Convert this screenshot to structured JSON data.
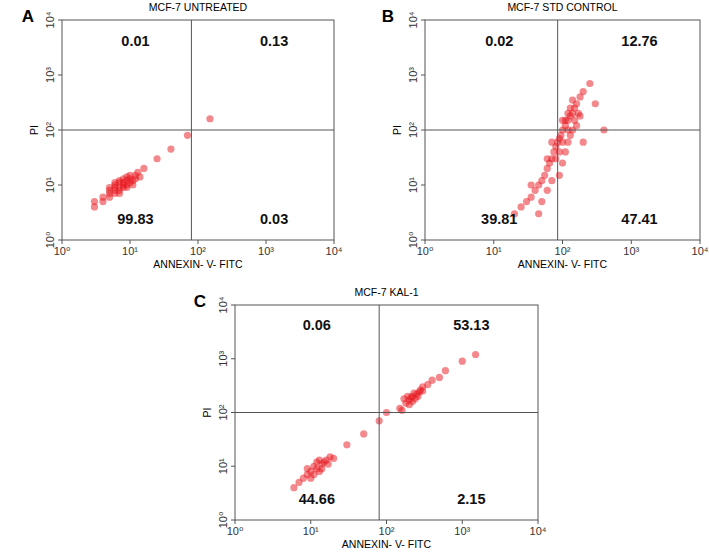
{
  "chart_data": [
    {
      "type": "scatter",
      "panel": "A",
      "title": "MCF-7 UNTREATED",
      "x_label": "ANNEXIN- V- FITC",
      "y_label": "PI",
      "log": true,
      "color": "#e8141b",
      "marker": "circle",
      "xlim": [
        1,
        10000
      ],
      "ylim": [
        1,
        10000
      ],
      "xticks": [
        {
          "value": 1,
          "label": "10⁰"
        },
        {
          "value": 10,
          "label": "10¹"
        },
        {
          "value": 100,
          "label": "10²"
        },
        {
          "value": 1000,
          "label": "10³"
        },
        {
          "value": 10000,
          "label": "10⁴"
        }
      ],
      "yticks": [
        {
          "value": 1,
          "label": "10⁰"
        },
        {
          "value": 10,
          "label": "10¹"
        },
        {
          "value": 100,
          "label": "10²"
        },
        {
          "value": 1000,
          "label": "10³"
        },
        {
          "value": 10000,
          "label": "10⁴"
        }
      ],
      "quadrant_x": 80,
      "quadrant_y": 100,
      "quadrants": {
        "upper_left": 0.01,
        "upper_right": 0.13,
        "lower_left": 99.83,
        "lower_right": 0.03
      },
      "x": [
        4,
        5,
        6,
        7,
        8,
        9,
        10,
        12,
        6,
        8,
        5,
        7,
        9,
        11,
        6,
        10,
        4,
        13,
        3,
        7,
        8,
        6,
        9,
        5,
        16,
        25,
        40,
        70,
        150,
        11,
        7,
        5,
        12,
        8,
        6,
        10,
        3,
        14,
        9,
        7
      ],
      "y": [
        6,
        7,
        8,
        9,
        11,
        12,
        13,
        15,
        10,
        9,
        9,
        12,
        10,
        12,
        7,
        11,
        5,
        17,
        5,
        8,
        13,
        11,
        14,
        6,
        20,
        30,
        45,
        80,
        160,
        10,
        7,
        8,
        13,
        10,
        9,
        15,
        4,
        14,
        9,
        11
      ]
    },
    {
      "type": "scatter",
      "panel": "B",
      "title": "MCF-7 STD CONTROL",
      "x_label": "ANNEXIN- V- FITC",
      "y_label": "PI",
      "log": true,
      "color": "#e8141b",
      "marker": "circle",
      "xlim": [
        1,
        10000
      ],
      "ylim": [
        1,
        10000
      ],
      "xticks": [
        {
          "value": 1,
          "label": "10⁰"
        },
        {
          "value": 10,
          "label": "10¹"
        },
        {
          "value": 100,
          "label": "10²"
        },
        {
          "value": 1000,
          "label": "10³"
        },
        {
          "value": 10000,
          "label": "10⁴"
        }
      ],
      "yticks": [
        {
          "value": 1,
          "label": "10⁰"
        },
        {
          "value": 10,
          "label": "10¹"
        },
        {
          "value": 100,
          "label": "10²"
        },
        {
          "value": 1000,
          "label": "10³"
        },
        {
          "value": 10000,
          "label": "10⁴"
        }
      ],
      "quadrant_x": 85,
      "quadrant_y": 100,
      "quadrants": {
        "upper_left": 0.02,
        "upper_right": 12.76,
        "lower_left": 39.81,
        "lower_right": 47.41
      },
      "x": [
        20,
        25,
        30,
        35,
        40,
        45,
        50,
        55,
        60,
        65,
        70,
        75,
        80,
        85,
        90,
        95,
        100,
        110,
        120,
        130,
        140,
        150,
        160,
        180,
        200,
        250,
        90,
        100,
        110,
        120,
        130,
        140,
        70,
        60,
        50,
        45,
        110,
        130,
        150,
        170,
        120,
        100,
        140,
        300,
        400,
        200,
        35,
        80,
        100,
        90,
        120,
        160,
        180,
        60,
        70
      ],
      "y": [
        3,
        4,
        5,
        6,
        8,
        10,
        12,
        15,
        20,
        25,
        30,
        40,
        50,
        60,
        70,
        80,
        100,
        120,
        150,
        180,
        200,
        250,
        300,
        400,
        500,
        700,
        15,
        25,
        40,
        60,
        80,
        100,
        12,
        8,
        5,
        3,
        150,
        250,
        150,
        200,
        200,
        150,
        350,
        300,
        100,
        60,
        10,
        30,
        60,
        40,
        100,
        120,
        180,
        30,
        60
      ]
    },
    {
      "type": "scatter",
      "panel": "C",
      "title": "MCF-7 KAL-1",
      "x_label": "ANNEXIN- V- FITC",
      "y_label": "PI",
      "log": true,
      "color": "#e8141b",
      "marker": "circle",
      "xlim": [
        1,
        10000
      ],
      "ylim": [
        1,
        10000
      ],
      "xticks": [
        {
          "value": 1,
          "label": "10⁰"
        },
        {
          "value": 10,
          "label": "10¹"
        },
        {
          "value": 100,
          "label": "10²"
        },
        {
          "value": 1000,
          "label": "10³"
        },
        {
          "value": 10000,
          "label": "10⁴"
        }
      ],
      "yticks": [
        {
          "value": 1,
          "label": "10⁰"
        },
        {
          "value": 10,
          "label": "10¹"
        },
        {
          "value": 100,
          "label": "10²"
        },
        {
          "value": 1000,
          "label": "10³"
        },
        {
          "value": 10000,
          "label": "10⁴"
        }
      ],
      "quadrant_x": 80,
      "quadrant_y": 100,
      "quadrants": {
        "upper_left": 0.06,
        "upper_right": 53.13,
        "lower_left": 44.66,
        "lower_right": 2.15
      },
      "x": [
        8,
        10,
        12,
        14,
        16,
        9,
        11,
        13,
        15,
        10,
        7,
        12,
        18,
        20,
        6,
        14,
        11,
        9,
        13,
        17,
        30,
        50,
        80,
        100,
        150,
        180,
        200,
        220,
        250,
        280,
        300,
        200,
        240,
        170,
        260,
        220,
        190,
        300,
        350,
        400,
        600,
        1000,
        160,
        230,
        270,
        210,
        500,
        1500
      ],
      "y": [
        6,
        8,
        9,
        11,
        13,
        7,
        10,
        8,
        12,
        6,
        5,
        12,
        15,
        14,
        4,
        9,
        7,
        9,
        13,
        11,
        25,
        40,
        70,
        100,
        120,
        150,
        170,
        200,
        220,
        260,
        300,
        140,
        180,
        180,
        200,
        160,
        200,
        250,
        330,
        400,
        600,
        900,
        110,
        230,
        240,
        190,
        450,
        1200
      ]
    }
  ]
}
